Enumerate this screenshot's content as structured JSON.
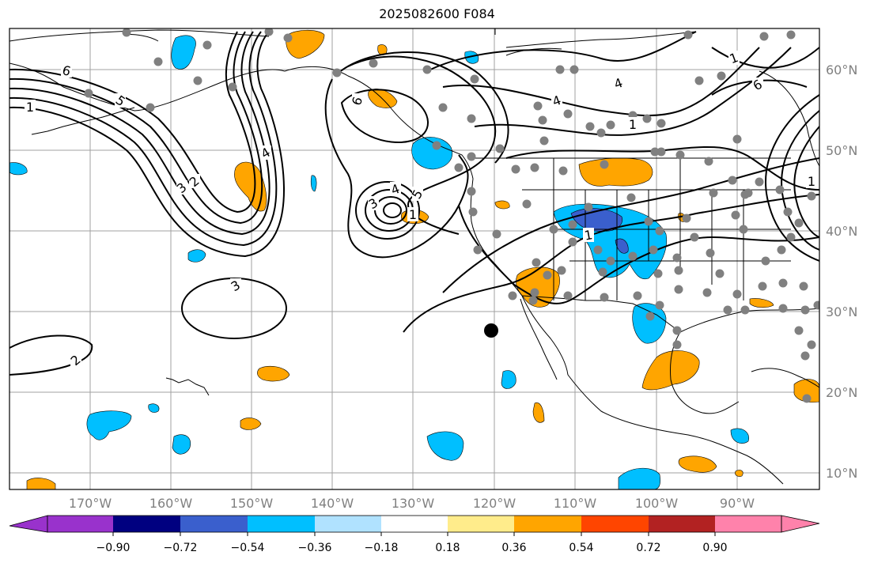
{
  "title": "2025082600 F084",
  "map": {
    "longitude_labels": [
      "170°W",
      "160°W",
      "150°W",
      "140°W",
      "130°W",
      "120°W",
      "110°W",
      "100°W",
      "90°W"
    ],
    "latitude_labels": [
      "60°N",
      "50°N",
      "40°N",
      "30°N",
      "20°N",
      "10°N"
    ],
    "contour_labels": [
      "1",
      "5",
      "6",
      "3",
      "2",
      "4",
      "6",
      "3",
      "4",
      "5",
      "1",
      "1",
      "3",
      "2",
      "4",
      "4",
      "1",
      "1",
      "6",
      "1"
    ],
    "colors": {
      "positive": "#ffa500",
      "negative": "#00bfff",
      "strong_negative": "#3a5fcd",
      "contour": "#000000",
      "station": "#808080",
      "grid": "#a0a0a0"
    }
  },
  "colorbar": {
    "tick_labels": [
      "−0.90",
      "−0.72",
      "−0.54",
      "−0.36",
      "−0.18",
      "0.18",
      "0.36",
      "0.54",
      "0.72",
      "0.90"
    ],
    "colors": [
      "#9932cc",
      "#000080",
      "#3a5fcd",
      "#00bfff",
      "#b0e2ff",
      "#ffffff",
      "#ffec8b",
      "#ffa500",
      "#ff4500",
      "#b22222",
      "#ff82ab"
    ]
  }
}
